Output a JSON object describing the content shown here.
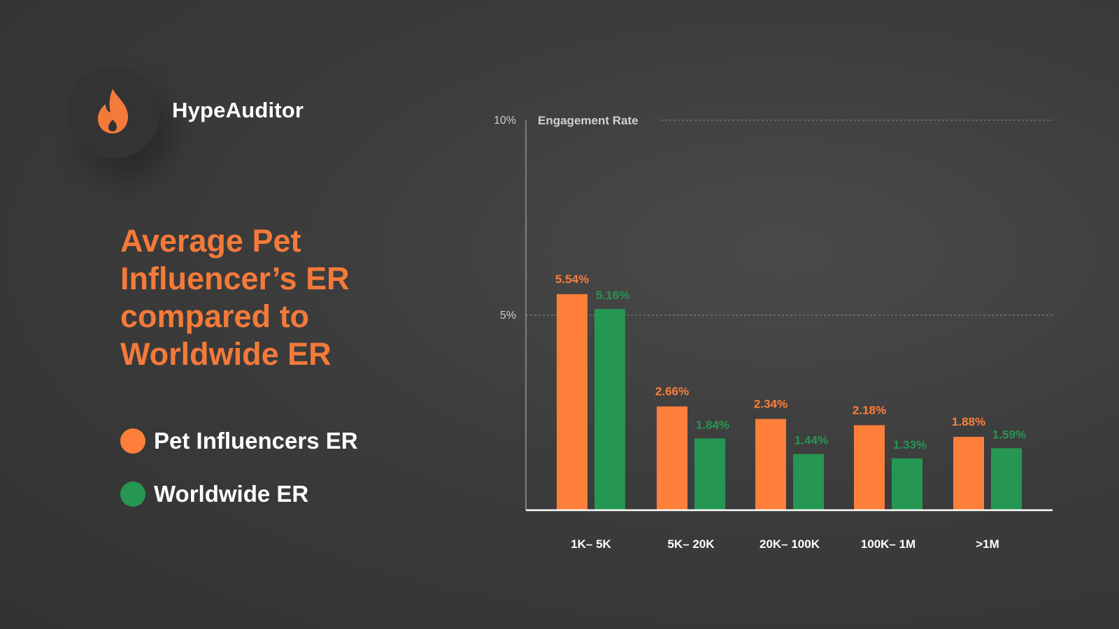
{
  "brand": {
    "name": "HypeAuditor",
    "logo_icon": "flame-icon",
    "logo_color": "#f47a3a"
  },
  "headline": "Average Pet Influencer’s ER compared to Worldwide ER",
  "legend": [
    {
      "label": "Pet Influencers ER",
      "color": "#fd7f3a"
    },
    {
      "label": "Worldwide ER",
      "color": "#269653"
    }
  ],
  "chart_data": {
    "type": "bar",
    "ylabel": "Engagement Rate",
    "ylim": [
      0,
      10
    ],
    "yticks": [
      {
        "value": 10,
        "label": "10%"
      },
      {
        "value": 5,
        "label": "5%"
      }
    ],
    "gridlines": "dashed at 5% and 10%",
    "categories": [
      "1K– 5K",
      "5K– 20K",
      "20K– 100K",
      "100K– 1M",
      ">1M"
    ],
    "series": [
      {
        "name": "Pet Influencers ER",
        "color": "#fd7f3a",
        "values": [
          5.54,
          2.66,
          2.34,
          2.18,
          1.88
        ],
        "labels": [
          "5.54%",
          "2.66%",
          "2.34%",
          "2.18%",
          "1.88%"
        ]
      },
      {
        "name": "Worldwide ER",
        "color": "#269653",
        "values": [
          5.16,
          1.84,
          1.44,
          1.33,
          1.59
        ],
        "labels": [
          "5.16%",
          "1.84%",
          "1.44%",
          "1.33%",
          "1.59%"
        ]
      }
    ]
  }
}
